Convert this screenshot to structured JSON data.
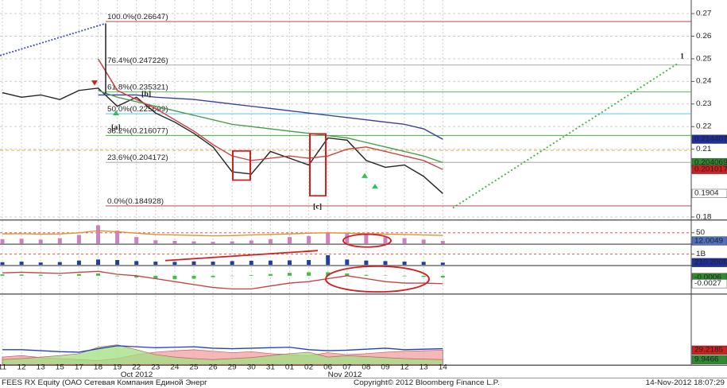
{
  "chart_data": [
    {
      "type": "line",
      "categories": [
        "11",
        "12",
        "13",
        "15",
        "17",
        "18",
        "19",
        "22",
        "23",
        "24",
        "25",
        "26",
        "29",
        "30",
        "31",
        "01",
        "02",
        "06",
        "07",
        "08",
        "09",
        "12",
        "13",
        "14"
      ],
      "month_labels": [
        "Oct 2012",
        "Nov 2012"
      ],
      "ylim": [
        0.179,
        0.276
      ],
      "yticks": [
        0.18,
        0.21,
        0.22,
        0.23,
        0.24,
        0.25,
        0.26,
        0.27
      ],
      "grid": true,
      "series": [
        {
          "style": "line",
          "color": "#222222",
          "tag": true,
          "tag_color": "#ffffff",
          "values": [
            0.235,
            0.233,
            0.234,
            0.232,
            0.236,
            0.237,
            0.229,
            0.233,
            0.226,
            0.222,
            0.217,
            0.211,
            0.2,
            0.199,
            0.209,
            0.206,
            0.203,
            0.215,
            0.214,
            0.205,
            0.202,
            0.203,
            0.198,
            0.1904
          ]
        },
        {
          "style": "line",
          "color": "#3c3c9c",
          "tag": true,
          "tag_color": "#1f2f9f",
          "values": [
            null,
            null,
            null,
            null,
            null,
            0.234,
            0.234,
            0.234,
            0.233,
            0.2325,
            0.232,
            0.231,
            0.23,
            0.229,
            0.228,
            0.227,
            0.226,
            0.225,
            0.224,
            0.223,
            0.222,
            0.221,
            0.219,
            0.214407
          ]
        },
        {
          "style": "line",
          "color": "#4a9a4a",
          "tag": true,
          "tag_color": "#2e8b2e",
          "values": [
            null,
            null,
            null,
            null,
            null,
            0.236,
            0.233,
            0.231,
            0.229,
            0.227,
            0.225,
            0.223,
            0.221,
            0.22,
            0.219,
            0.218,
            0.217,
            0.216,
            0.215,
            0.213,
            0.211,
            0.209,
            0.207,
            0.204069
          ]
        },
        {
          "style": "line",
          "color": "#c84040",
          "tag": true,
          "tag_color": "#d02020",
          "values": [
            null,
            null,
            null,
            null,
            null,
            0.25,
            0.236,
            0.232,
            0.228,
            0.223,
            0.218,
            0.212,
            0.207,
            0.205,
            0.206,
            0.207,
            0.206,
            0.207,
            0.21,
            0.211,
            0.209,
            0.207,
            0.205,
            0.201017
          ]
        }
      ],
      "fib_levels": [
        {
          "value": 0.26647,
          "label": "100.0%(0.26647)",
          "color": "#b03030"
        },
        {
          "value": 0.247226,
          "label": "76.4%(0.247226)",
          "color": "#999999"
        },
        {
          "value": 0.235321,
          "label": "61.8%(0.235321)",
          "color": "#40b040"
        },
        {
          "value": 0.225699,
          "label": "50.0%(0.225699)",
          "color": "#40c0e0"
        },
        {
          "value": 0.216077,
          "label": "38.2%(0.216077)",
          "color": "#40b040"
        },
        {
          "value": 0.204172,
          "label": "23.6%(0.204172)",
          "color": "#999999"
        },
        {
          "value": 0.184928,
          "label": "0.0%(0.184928)",
          "color": "#b03030"
        }
      ],
      "hlines": [
        {
          "value": 0.2095,
          "color": "#f0a030"
        }
      ],
      "annotations": [
        "[a]",
        "[b]",
        "[c]",
        "1"
      ]
    },
    {
      "type": "panel",
      "ylim": [
        0,
        100
      ],
      "yticks": [
        50
      ],
      "series": [
        {
          "style": "bar",
          "color": "#d080c0",
          "tag": true,
          "tag_color": "#5070c0",
          "values": [
            20,
            22,
            18,
            25,
            40,
            85,
            60,
            30,
            15,
            12,
            10,
            8,
            10,
            14,
            20,
            30,
            35,
            50,
            45,
            40,
            30,
            25,
            18,
            12.0049
          ]
        },
        {
          "style": "line",
          "color": "#e09030",
          "values": [
            45,
            46,
            44,
            45,
            50,
            60,
            55,
            48,
            42,
            40,
            38,
            36,
            37,
            40,
            42,
            45,
            48,
            50,
            48,
            46,
            44,
            42,
            40,
            38
          ]
        }
      ]
    },
    {
      "type": "panel",
      "ylim": [
        0,
        1800000000
      ],
      "yticks": [
        {
          "value": 1000000000,
          "label": "1B"
        }
      ],
      "series": [
        {
          "style": "bar",
          "color": "#2040a0",
          "tag": true,
          "tag_color": "#1f2f9f",
          "tag_label": "210.200M",
          "values": [
            250000000,
            300000000,
            220000000,
            260000000,
            400000000,
            500000000,
            450000000,
            350000000,
            300000000,
            280000000,
            320000000,
            300000000,
            350000000,
            380000000,
            400000000,
            420000000,
            450000000,
            900000000,
            500000000,
            400000000,
            350000000,
            300000000,
            280000000,
            210200000
          ]
        }
      ]
    },
    {
      "type": "panel",
      "ylim": [
        -0.006,
        0.003
      ],
      "yticks": [],
      "series": [
        {
          "style": "bar",
          "color": "#40c040",
          "tag": true,
          "tag_color": "#2e8b2e",
          "values": [
            0.0005,
            0.0004,
            0.0003,
            0.0002,
            0.0006,
            0.0008,
            -0.0002,
            -0.0006,
            -0.001,
            -0.0012,
            -0.001,
            -0.0005,
            0,
            0.0002,
            0.0006,
            0.001,
            0.0012,
            0.0012,
            0.0008,
            0.0003,
            0.0001,
            -0.0002,
            -0.0004,
            -0.0006
          ]
        },
        {
          "style": "line",
          "color": "#c84040",
          "tag": true,
          "tag_color": "#ffffff",
          "values": [
            0.001,
            0.0012,
            0.001,
            0.0008,
            0.0012,
            0.0015,
            0.0005,
            0,
            -0.001,
            -0.002,
            -0.003,
            -0.004,
            -0.0045,
            -0.0045,
            -0.0035,
            -0.0025,
            -0.002,
            -0.001,
            0,
            -0.001,
            -0.002,
            -0.0025,
            -0.0025,
            -0.0027
          ]
        }
      ]
    },
    {
      "type": "panel",
      "ylim": [
        0,
        140
      ],
      "yticks": [],
      "series": [
        {
          "style": "area",
          "color": "#f0a0a0",
          "tag": true,
          "tag_color": "#d02020",
          "values": [
            15,
            18,
            14,
            12,
            10,
            8,
            12,
            20,
            25,
            28,
            30,
            27,
            24,
            26,
            22,
            20,
            18,
            24,
            20,
            22,
            25,
            27,
            28,
            29.2185
          ]
        },
        {
          "style": "area",
          "color": "#a0e080",
          "tag": true,
          "tag_color": "#2e8b2e",
          "values": [
            10,
            12,
            15,
            18,
            22,
            35,
            40,
            30,
            20,
            15,
            12,
            10,
            12,
            14,
            18,
            22,
            25,
            15,
            18,
            16,
            14,
            12,
            11,
            9.9466
          ]
        },
        {
          "style": "line",
          "color": "#2040c0",
          "values": [
            30,
            30,
            28,
            26,
            25,
            32,
            38,
            36,
            34,
            35,
            36,
            33,
            32,
            33,
            34,
            35,
            30,
            28,
            29,
            31,
            33,
            30,
            31,
            32
          ]
        }
      ]
    }
  ],
  "footer": {
    "left": "FEES RX Equity (ОАО Сетевая Компания Единой Энерг",
    "center": "Copyright© 2012 Bloomberg Finance L.P.",
    "right": "14-Nov-2012 18:07:29"
  }
}
